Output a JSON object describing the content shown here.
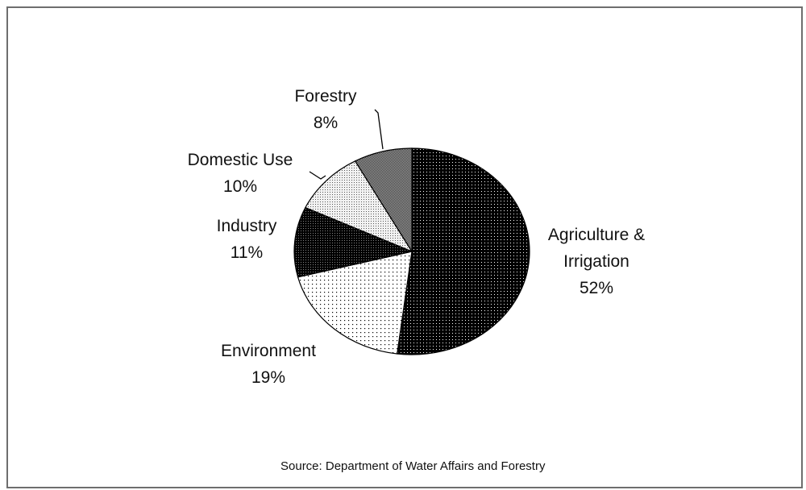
{
  "chart_data": {
    "type": "pie",
    "title": "",
    "slices": [
      {
        "name": "Agriculture & Irrigation",
        "label_lines": [
          "Agriculture &",
          "Irrigation"
        ],
        "value": 52,
        "value_label": "52%",
        "fill": "dots-dense",
        "color": "#000000"
      },
      {
        "name": "Environment",
        "label_lines": [
          "Environment"
        ],
        "value": 19,
        "value_label": "19%",
        "fill": "dots-sparse",
        "color": "#ffffff"
      },
      {
        "name": "Industry",
        "label_lines": [
          "Industry"
        ],
        "value": 11,
        "value_label": "11%",
        "fill": "dots-dark",
        "color": "#111111"
      },
      {
        "name": "Domestic Use",
        "label_lines": [
          "Domestic Use"
        ],
        "value": 10,
        "value_label": "10%",
        "fill": "dots-light",
        "color": "#dddddd"
      },
      {
        "name": "Forestry",
        "label_lines": [
          "Forestry"
        ],
        "value": 8,
        "value_label": "8%",
        "fill": "checker-grey",
        "color": "#777777"
      }
    ],
    "legend": "none"
  },
  "source_note": "Source:  Department of Water Affairs and Forestry"
}
